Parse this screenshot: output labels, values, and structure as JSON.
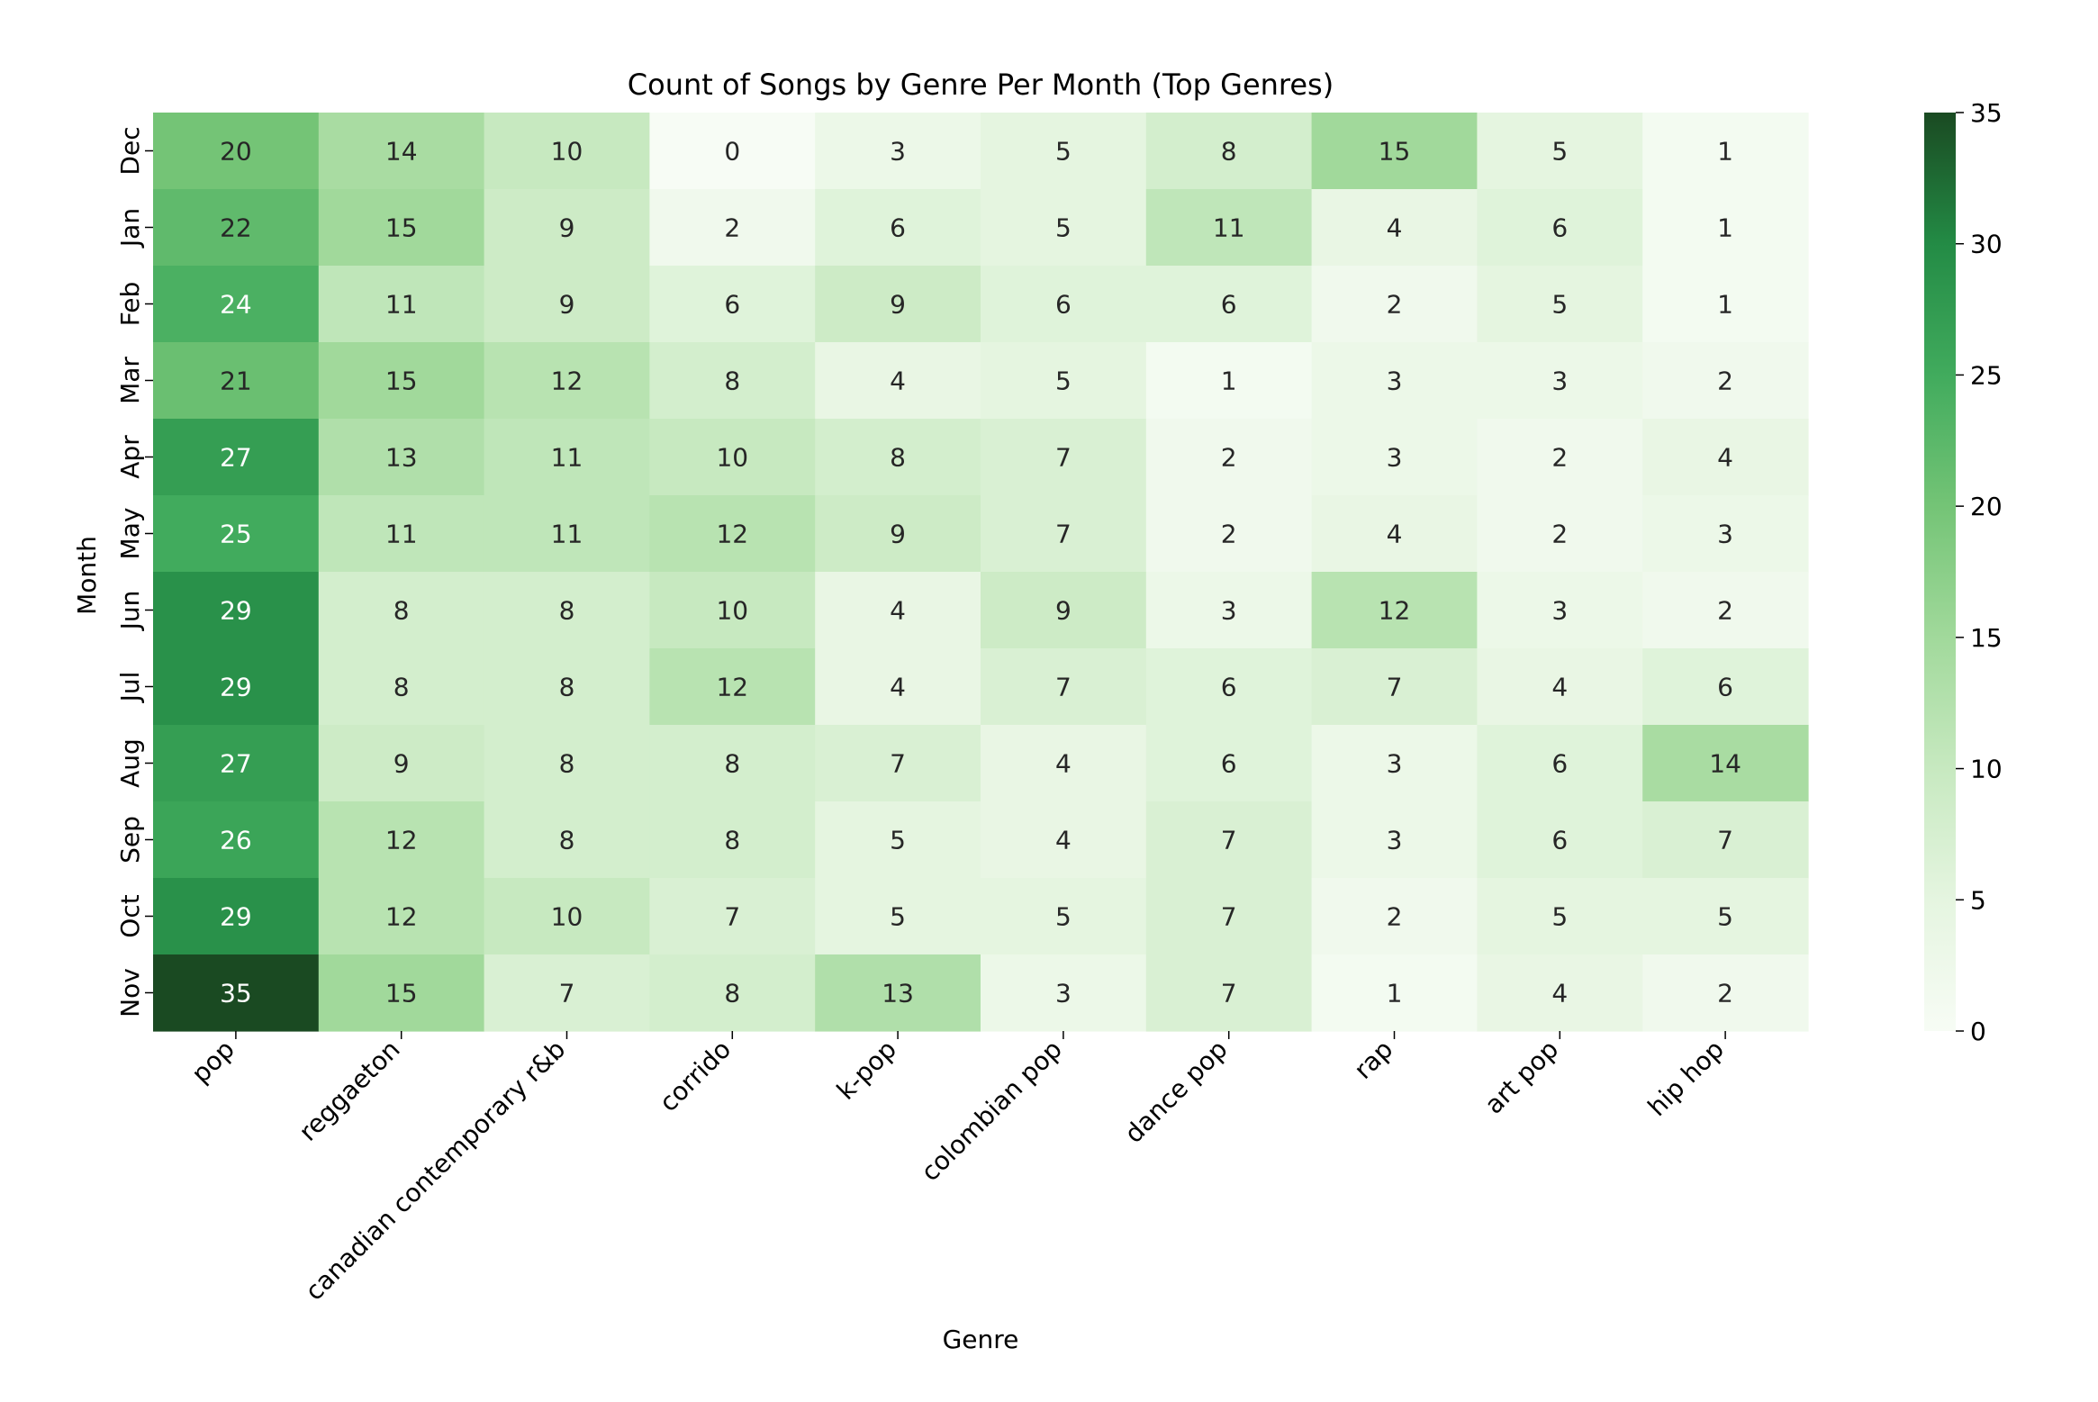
{
  "chart_data": {
    "type": "heatmap",
    "title": "Count of Songs by Genre Per Month (Top Genres)",
    "xlabel": "Genre",
    "ylabel": "Month",
    "x_categories": [
      "pop",
      "reggaeton",
      "canadian contemporary r&b",
      "corrido",
      "k-pop",
      "colombian pop",
      "dance pop",
      "rap",
      "art pop",
      "hip hop"
    ],
    "y_categories": [
      "Dec",
      "Jan",
      "Feb",
      "Mar",
      "Apr",
      "May",
      "Jun",
      "Jul",
      "Aug",
      "Sep",
      "Oct",
      "Nov"
    ],
    "values": [
      [
        20,
        14,
        10,
        0,
        3,
        5,
        8,
        15,
        5,
        1
      ],
      [
        22,
        15,
        9,
        2,
        6,
        5,
        11,
        4,
        6,
        1
      ],
      [
        24,
        11,
        9,
        6,
        9,
        6,
        6,
        2,
        5,
        1
      ],
      [
        21,
        15,
        12,
        8,
        4,
        5,
        1,
        3,
        3,
        2
      ],
      [
        27,
        13,
        11,
        10,
        8,
        7,
        2,
        3,
        2,
        4
      ],
      [
        25,
        11,
        11,
        12,
        9,
        7,
        2,
        4,
        2,
        3
      ],
      [
        29,
        8,
        8,
        10,
        4,
        9,
        3,
        12,
        3,
        2
      ],
      [
        29,
        8,
        8,
        12,
        4,
        7,
        6,
        7,
        4,
        6
      ],
      [
        27,
        9,
        8,
        8,
        7,
        4,
        6,
        3,
        6,
        14
      ],
      [
        26,
        12,
        8,
        8,
        5,
        4,
        7,
        3,
        6,
        7
      ],
      [
        29,
        12,
        10,
        7,
        5,
        5,
        7,
        2,
        5,
        5
      ],
      [
        35,
        15,
        7,
        8,
        13,
        3,
        7,
        1,
        4,
        2
      ]
    ],
    "colorbar": {
      "min": 0,
      "max": 35,
      "ticks": [
        0,
        5,
        10,
        15,
        20,
        25,
        30,
        35
      ],
      "colors": [
        "#f7fcf5",
        "#e5f5e0",
        "#c7e9c0",
        "#a1d99b",
        "#74c476",
        "#41ab5d",
        "#238b45",
        "#1a4a22"
      ]
    },
    "annotation_light_color": "#ffffff",
    "annotation_dark_color": "#262626"
  }
}
